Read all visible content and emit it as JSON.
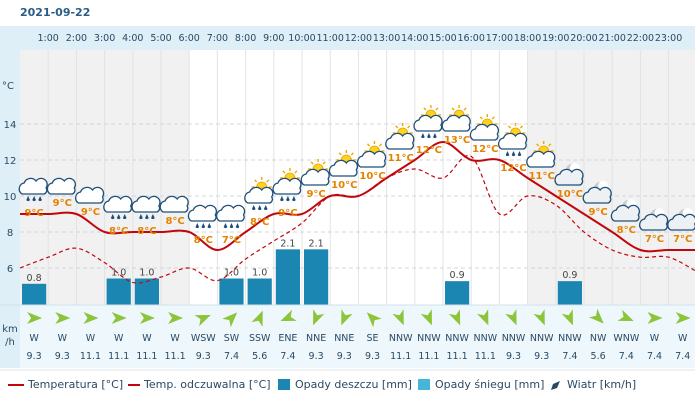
{
  "date": "2021-09-22",
  "units": {
    "temp": "°C",
    "wind_kmh": "km\n/h"
  },
  "chart_data": {
    "type": "line",
    "hours": [
      "1:00",
      "2:00",
      "3:00",
      "4:00",
      "5:00",
      "6:00",
      "7:00",
      "8:00",
      "9:00",
      "10:00",
      "11:00",
      "12:00",
      "13:00",
      "14:00",
      "15:00",
      "16:00",
      "17:00",
      "18:00",
      "19:00",
      "20:00",
      "21:00",
      "22:00",
      "23:00"
    ],
    "y_ticks": [
      6,
      8,
      10,
      12,
      14
    ],
    "ylim": [
      4.2,
      15.8
    ],
    "temperature": [
      9,
      9,
      9,
      8,
      8,
      8,
      8,
      7,
      8,
      9,
      9,
      10,
      10,
      11,
      12,
      13,
      12,
      12,
      11,
      10,
      9,
      8,
      7,
      7,
      7
    ],
    "temperature_labels": [
      "9°C",
      "9°C",
      "9°C",
      "8°C",
      "8°C",
      "8°C",
      "8°C",
      "7°C",
      "8°C",
      "9°C",
      "9°C",
      "10°C",
      "10°C",
      "11°C",
      "12°C",
      "13°C",
      "12°C",
      "12°C",
      "11°C",
      "10°C",
      "9°C",
      "8°C",
      "7°C",
      "7°C"
    ],
    "feels_like": [
      6.0,
      6.6,
      7.1,
      6.3,
      5.2,
      5.5,
      6.0,
      5.3,
      6.5,
      7.5,
      8.5,
      10.0,
      10.0,
      11.0,
      11.5,
      11.0,
      12.2,
      9.0,
      10.0,
      9.5,
      8.0,
      7.0,
      6.6,
      6.6,
      5.8
    ],
    "rain_mm": [
      0.8,
      0,
      0,
      1.0,
      1.0,
      0,
      0,
      1.0,
      1.0,
      2.1,
      2.1,
      0,
      0,
      0,
      0,
      0.9,
      0,
      0,
      0,
      0.9,
      0,
      0,
      0,
      0,
      0
    ],
    "rain_labels": [
      "0.8",
      "",
      "",
      "1.0",
      "1.0",
      "",
      "",
      "1.0",
      "1.0",
      "2.1",
      "2.1",
      "",
      "",
      "",
      "",
      "0.9",
      "",
      "",
      "",
      "0.9",
      "",
      "",
      "",
      "",
      ""
    ],
    "wind_dir": [
      "W",
      "W",
      "W",
      "W",
      "W",
      "W",
      "WSW",
      "SW",
      "SSW",
      "ENE",
      "NNE",
      "NNE",
      "SE",
      "NNW",
      "NNW",
      "NNW",
      "NNW",
      "NNW",
      "NNW",
      "NNW",
      "NW",
      "WNW",
      "W",
      "W"
    ],
    "wind_speed": [
      "9.3",
      "9.3",
      "11.1",
      "11.1",
      "11.1",
      "11.1",
      "9.3",
      "7.4",
      "5.6",
      "7.4",
      "9.3",
      "9.3",
      "9.3",
      "11.1",
      "11.1",
      "11.1",
      "11.1",
      "9.3",
      "9.3",
      "7.4",
      "5.6",
      "7.4",
      "7.4",
      "7.4"
    ],
    "weather_icons": [
      "rain-cloud",
      "cloud",
      "cloud",
      "rain-cloud",
      "rain-cloud",
      "cloud",
      "rain-cloud",
      "rain-cloud",
      "sun-rain-cloud",
      "sun-rain-cloud",
      "sun-cloud",
      "sun-cloud",
      "sun-cloud",
      "sun-cloud",
      "sun-rain-cloud",
      "sun-cloud",
      "sun-cloud",
      "sun-rain-cloud",
      "sun-cloud",
      "moon-cloud",
      "moon-cloud",
      "moon-cloud",
      "moon-cloud",
      "moon-cloud"
    ],
    "colors": {
      "temperature": "#c0080c",
      "rain": "#1b86b2",
      "snow": "#45b6d8",
      "wind_arrow": "#8cc43a",
      "temp_label": "#e48300",
      "axis_bg": "#deeff8"
    }
  },
  "legend": {
    "temperature": "Temperatura [°C]",
    "feels_like": "Temp. odczuwalna [°C]",
    "rain": "Opady deszczu [mm]",
    "snow": "Opady śniegu [mm]",
    "wind": "Wiatr [km/h]"
  }
}
